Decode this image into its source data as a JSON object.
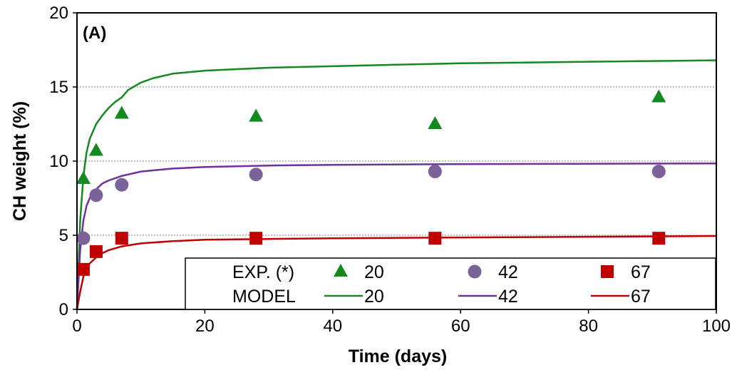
{
  "chart_data": {
    "type": "scatter",
    "panel_label": "(A)",
    "xlabel": "Time (days)",
    "ylabel": "CH weight (%)",
    "xlim": [
      0,
      100
    ],
    "ylim": [
      0,
      20
    ],
    "xticks": [
      0,
      20,
      40,
      60,
      80,
      100
    ],
    "yticks": [
      0,
      5,
      10,
      15,
      20
    ],
    "grid": "horizontal dotted",
    "legend_position": "bottom-right",
    "legend": {
      "exp_label": "EXP. (*)",
      "model_label": "MODEL",
      "entries": [
        "20",
        "42",
        "67"
      ]
    },
    "experimental_series": [
      {
        "name": "20",
        "marker": "triangle",
        "color": "#13891f",
        "x": [
          1,
          3,
          7,
          28,
          56,
          91
        ],
        "y": [
          8.8,
          10.7,
          13.2,
          13.0,
          12.5,
          14.3
        ]
      },
      {
        "name": "42",
        "marker": "circle",
        "color": "#7b6298",
        "x": [
          1,
          3,
          7,
          28,
          56,
          91
        ],
        "y": [
          4.8,
          7.7,
          8.4,
          9.1,
          9.3,
          9.3
        ]
      },
      {
        "name": "67",
        "marker": "square",
        "color": "#c00000",
        "x": [
          1,
          3,
          7,
          28,
          56,
          91
        ],
        "y": [
          2.7,
          3.9,
          4.8,
          4.8,
          4.8,
          4.8
        ]
      }
    ],
    "model_series": [
      {
        "name": "20",
        "color": "#13891f",
        "x": [
          0,
          0.5,
          1,
          1.5,
          2,
          3,
          4,
          5,
          6,
          7,
          8,
          10,
          12,
          15,
          20,
          25,
          30,
          40,
          50,
          60,
          70,
          80,
          90,
          100
        ],
        "y": [
          0,
          6.0,
          9.0,
          10.6,
          11.5,
          12.5,
          13.1,
          13.6,
          14.0,
          14.3,
          14.8,
          15.3,
          15.6,
          15.9,
          16.1,
          16.2,
          16.3,
          16.4,
          16.5,
          16.6,
          16.65,
          16.7,
          16.75,
          16.8
        ]
      },
      {
        "name": "42",
        "color": "#7030a0",
        "x": [
          0,
          0.5,
          1,
          1.5,
          2,
          3,
          4,
          5,
          7,
          10,
          15,
          20,
          30,
          40,
          60,
          80,
          100
        ],
        "y": [
          0,
          4.0,
          6.0,
          7.0,
          7.5,
          8.1,
          8.5,
          8.7,
          9.0,
          9.3,
          9.5,
          9.6,
          9.7,
          9.75,
          9.8,
          9.82,
          9.84
        ]
      },
      {
        "name": "67",
        "color": "#c00000",
        "x": [
          0,
          0.5,
          1,
          1.5,
          2,
          3,
          4,
          5,
          7,
          10,
          15,
          20,
          30,
          40,
          60,
          80,
          100
        ],
        "y": [
          0,
          1.2,
          2.2,
          2.8,
          3.1,
          3.5,
          3.8,
          4.0,
          4.25,
          4.45,
          4.6,
          4.7,
          4.75,
          4.8,
          4.85,
          4.9,
          4.95
        ]
      }
    ]
  }
}
